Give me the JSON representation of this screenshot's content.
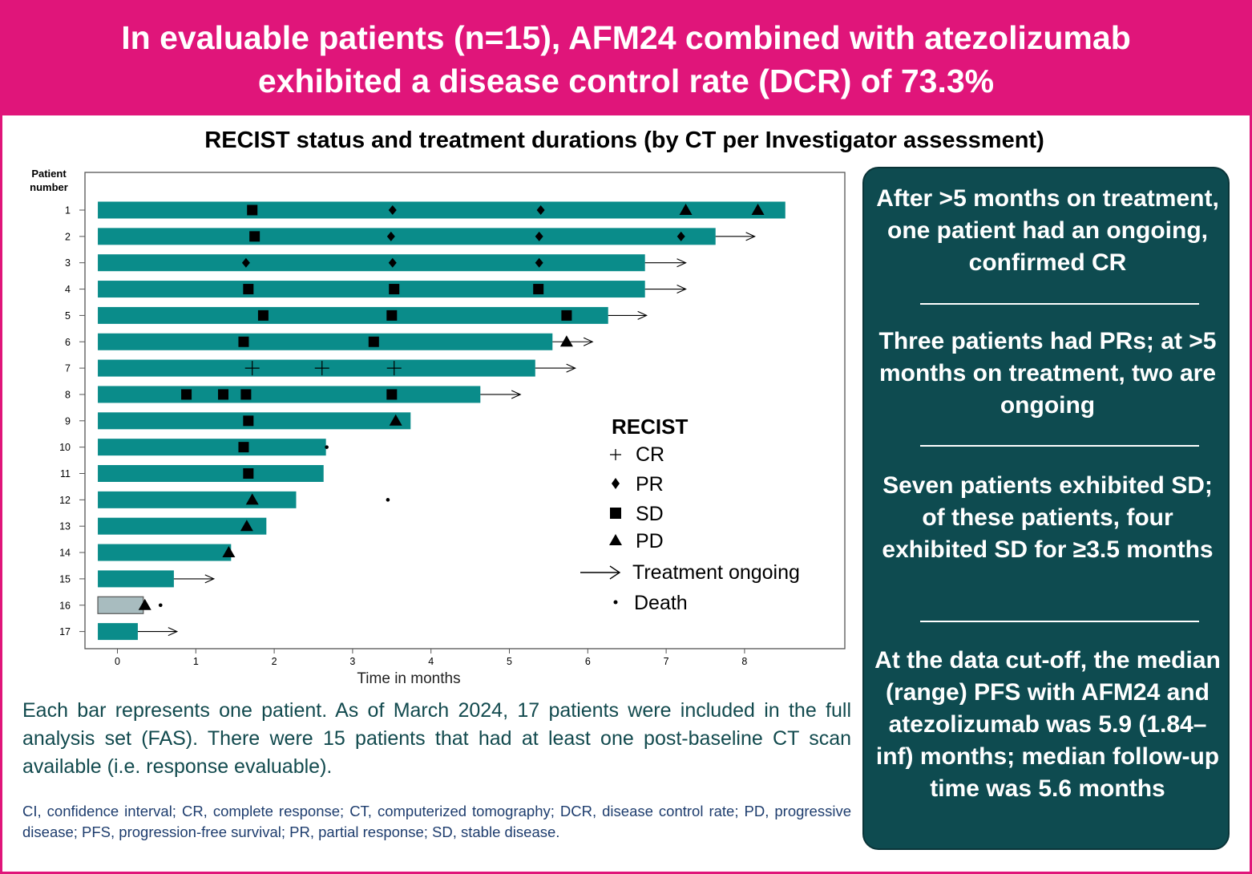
{
  "header": {
    "title": "In evaluable patients (n=15), AFM24 combined with atezolizumab\nexhibited a disease control rate (DCR) of 73.3%"
  },
  "colors": {
    "accent": "#e0157a",
    "bar": "#0a8c8a",
    "bar_alt": "#a8bcbf",
    "panel": "#0e4b50",
    "caption_text": "#124a4e"
  },
  "chart_data": {
    "type": "bar",
    "orientation": "horizontal",
    "title": "RECIST status and treatment durations (by CT per Investigator assessment)",
    "ylabel": "Patient\nnumber",
    "xlabel": "Time in months",
    "xlim": [
      -0.27,
      9.3
    ],
    "xticks": [
      "0",
      "1",
      "2",
      "3",
      "4",
      "5",
      "6",
      "7",
      "8"
    ],
    "grid": false,
    "patients": [
      {
        "id": "1",
        "start": -0.25,
        "end": 8.52,
        "ongoing": false,
        "color": "teal",
        "events": [
          {
            "type": "SD",
            "t": 1.72
          },
          {
            "type": "PR",
            "t": 3.51
          },
          {
            "type": "PR",
            "t": 5.4
          },
          {
            "type": "PD",
            "t": 7.25
          },
          {
            "type": "PD",
            "t": 8.17
          }
        ]
      },
      {
        "id": "2",
        "start": -0.25,
        "end": 7.63,
        "ongoing": true,
        "arrow_end": 8.13,
        "color": "teal",
        "events": [
          {
            "type": "SD",
            "t": 1.75
          },
          {
            "type": "PR",
            "t": 3.49
          },
          {
            "type": "PR",
            "t": 5.38
          },
          {
            "type": "PR",
            "t": 7.19
          }
        ]
      },
      {
        "id": "3",
        "start": -0.25,
        "end": 6.73,
        "ongoing": true,
        "arrow_end": 7.25,
        "color": "teal",
        "events": [
          {
            "type": "PR",
            "t": 1.64
          },
          {
            "type": "PR",
            "t": 3.51
          },
          {
            "type": "PR",
            "t": 5.38
          }
        ]
      },
      {
        "id": "4",
        "start": -0.25,
        "end": 6.73,
        "ongoing": true,
        "arrow_end": 7.25,
        "color": "teal",
        "events": [
          {
            "type": "SD",
            "t": 1.67
          },
          {
            "type": "SD",
            "t": 3.53
          },
          {
            "type": "SD",
            "t": 5.37
          }
        ]
      },
      {
        "id": "5",
        "start": -0.25,
        "end": 6.26,
        "ongoing": true,
        "arrow_end": 6.75,
        "color": "teal",
        "events": [
          {
            "type": "SD",
            "t": 1.86
          },
          {
            "type": "SD",
            "t": 3.5
          },
          {
            "type": "SD",
            "t": 5.73
          }
        ]
      },
      {
        "id": "6",
        "start": -0.25,
        "end": 5.55,
        "ongoing": true,
        "arrow_end": 6.06,
        "color": "teal",
        "events": [
          {
            "type": "SD",
            "t": 1.61
          },
          {
            "type": "SD",
            "t": 3.27
          },
          {
            "type": "PD",
            "t": 5.73
          }
        ]
      },
      {
        "id": "7",
        "start": -0.25,
        "end": 5.33,
        "ongoing": true,
        "arrow_end": 5.84,
        "color": "teal",
        "events": [
          {
            "type": "CR",
            "t": 1.72
          },
          {
            "type": "CR",
            "t": 2.61
          },
          {
            "type": "CR",
            "t": 3.53
          }
        ]
      },
      {
        "id": "8",
        "start": -0.25,
        "end": 4.63,
        "ongoing": true,
        "arrow_end": 5.14,
        "color": "teal",
        "events": [
          {
            "type": "SD",
            "t": 0.88
          },
          {
            "type": "SD",
            "t": 1.35
          },
          {
            "type": "SD",
            "t": 1.64
          },
          {
            "type": "SD",
            "t": 3.5
          }
        ]
      },
      {
        "id": "9",
        "start": -0.25,
        "end": 3.74,
        "ongoing": false,
        "color": "teal",
        "events": [
          {
            "type": "SD",
            "t": 1.67
          },
          {
            "type": "PD",
            "t": 3.55
          }
        ]
      },
      {
        "id": "10",
        "start": -0.25,
        "end": 2.66,
        "ongoing": false,
        "color": "teal",
        "events": [
          {
            "type": "SD",
            "t": 1.61
          },
          {
            "type": "Death",
            "t": 2.67
          }
        ]
      },
      {
        "id": "11",
        "start": -0.25,
        "end": 2.63,
        "ongoing": false,
        "color": "teal",
        "events": [
          {
            "type": "SD",
            "t": 1.67
          }
        ]
      },
      {
        "id": "12",
        "start": -0.25,
        "end": 2.28,
        "ongoing": false,
        "color": "teal",
        "events": [
          {
            "type": "PD",
            "t": 1.72
          },
          {
            "type": "Death",
            "t": 3.45
          }
        ]
      },
      {
        "id": "13",
        "start": -0.25,
        "end": 1.9,
        "ongoing": false,
        "color": "teal",
        "events": [
          {
            "type": "PD",
            "t": 1.65
          }
        ]
      },
      {
        "id": "14",
        "start": -0.25,
        "end": 1.45,
        "ongoing": false,
        "color": "teal",
        "events": [
          {
            "type": "PD",
            "t": 1.42
          }
        ]
      },
      {
        "id": "15",
        "start": -0.25,
        "end": 0.72,
        "ongoing": true,
        "arrow_end": 1.23,
        "color": "teal",
        "events": []
      },
      {
        "id": "16",
        "start": -0.25,
        "end": 0.33,
        "ongoing": false,
        "color": "grey",
        "events": [
          {
            "type": "PD",
            "t": 0.35
          },
          {
            "type": "Death",
            "t": 0.55
          }
        ]
      },
      {
        "id": "17",
        "start": -0.25,
        "end": 0.26,
        "ongoing": true,
        "arrow_end": 0.76,
        "color": "teal",
        "events": []
      }
    ],
    "legend": {
      "title": "RECIST",
      "placement": "right-inside",
      "items": [
        {
          "symbol": "CR",
          "label": "CR"
        },
        {
          "symbol": "PR",
          "label": "PR"
        },
        {
          "symbol": "SD",
          "label": "SD"
        },
        {
          "symbol": "PD",
          "label": "PD"
        },
        {
          "symbol": "Arrow",
          "label": "Treatment ongoing"
        },
        {
          "symbol": "Death",
          "label": "Death"
        }
      ]
    }
  },
  "caption": "Each bar represents one patient. As of March 2024, 17 patients were included in the full analysis set (FAS). There were 15 patients that had at least one post-baseline CT scan available (i.e. response evaluable).",
  "footnote": "CI, confidence interval; CR, complete response; CT, computerized tomography; DCR, disease control rate; PD, progressive disease; PFS, progression-free survival; PR, partial response; SD, stable disease.",
  "side_panel": {
    "items": [
      "After >5 months on treatment, one patient had an ongoing, confirmed CR",
      "Three patients had PRs; at >5 months on treatment, two are ongoing",
      "Seven patients exhibited SD; of these patients, four exhibited SD for ≥3.5 months",
      "At the data cut-off, the median (range) PFS with AFM24 and atezolizumab was 5.9 (1.84–inf) months; median follow-up time was 5.6 months"
    ]
  }
}
